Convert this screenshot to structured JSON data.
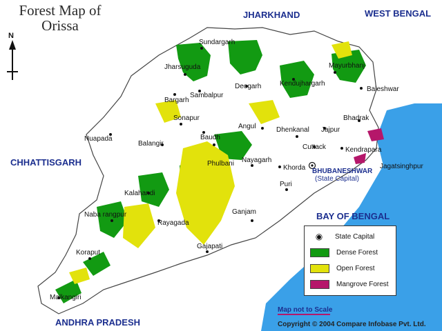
{
  "title": {
    "line1": "Forest Map of",
    "line2": "Orissa"
  },
  "compass": "N",
  "neighbors": {
    "jharkhand": "JHARKHAND",
    "west_bengal": "WEST BENGAL",
    "chhattisgarh": "CHHATTISGARH",
    "andhra_pradesh": "ANDHRA PRADESH",
    "bay_of_bengal": "BAY OF BENGAL"
  },
  "districts": [
    "Sundargarh",
    "Jharsuguda",
    "Deogarh",
    "Kendujhargarh",
    "Mayurbhanj",
    "Baleshwar",
    "Bargarh",
    "Sambalpur",
    "Sonapur",
    "Angul",
    "Dhenkanal",
    "Jajpur",
    "Bhadrak",
    "Nuapada",
    "Balangir",
    "Baudh",
    "Cuttack",
    "Kendrapara",
    "Jagatsinghpur",
    "Phulbani",
    "Nayagarh",
    "Khorda",
    "Puri",
    "Kalahandi",
    "Ganjam",
    "Naba rangpur",
    "Rayagada",
    "Koraput",
    "Gajapati",
    "Malkangiri"
  ],
  "capital": {
    "name": "BHUBANESHWAR",
    "note": "(State Capital)"
  },
  "legend": {
    "items": [
      {
        "label": "State Capital",
        "color": ""
      },
      {
        "label": "Dense Forest",
        "color": "#129a12"
      },
      {
        "label": "Open Forest",
        "color": "#e2e20c"
      },
      {
        "label": "Mangrove Forest",
        "color": "#b5176a"
      }
    ]
  },
  "scale_note": "Map not to Scale",
  "copyright": "Copyright © 2004 Compare Infobase Pvt. Ltd.",
  "colors": {
    "sea": "#3aa0e8",
    "land": "#ffffff",
    "border": "#444444",
    "dense": "#129a12",
    "open": "#e2e20c",
    "mangrove": "#b5176a",
    "label": "#1c2f8f"
  }
}
